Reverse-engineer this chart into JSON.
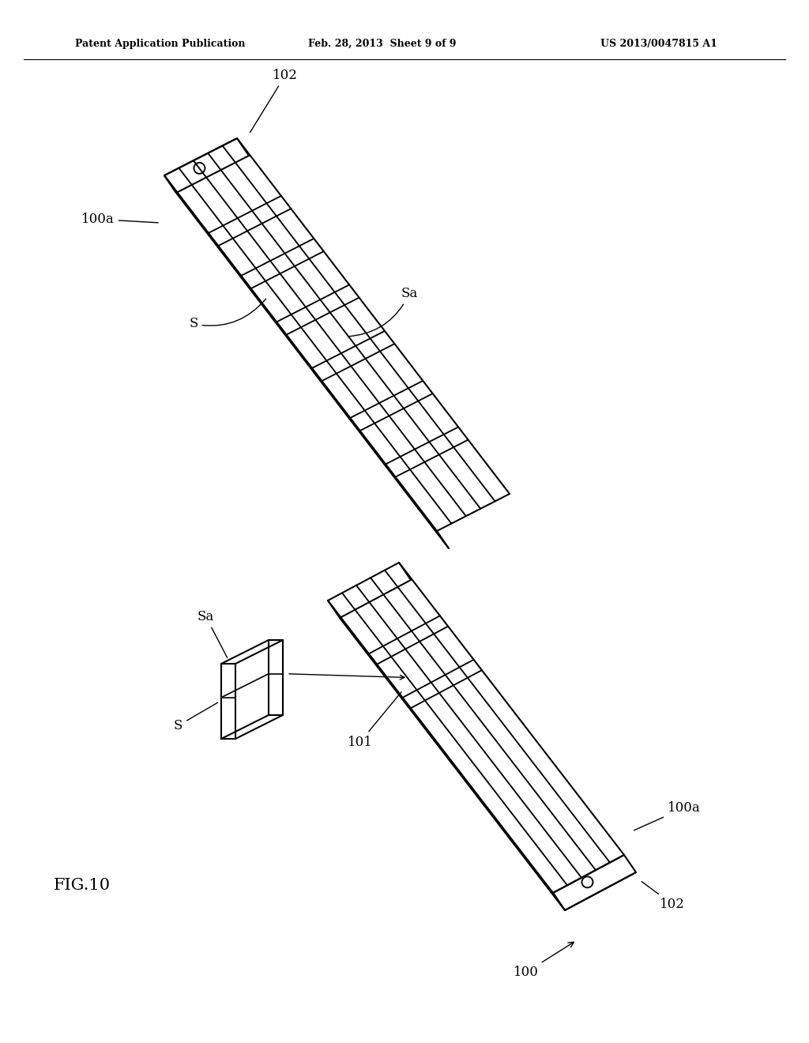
{
  "background_color": "#ffffff",
  "header_left": "Patent Application Publication",
  "header_center": "Feb. 28, 2013  Sheet 9 of 9",
  "header_right": "US 2013/0047815 A1",
  "figure_label": "FIG.10",
  "line_color": "#000000",
  "line_width": 1.5
}
